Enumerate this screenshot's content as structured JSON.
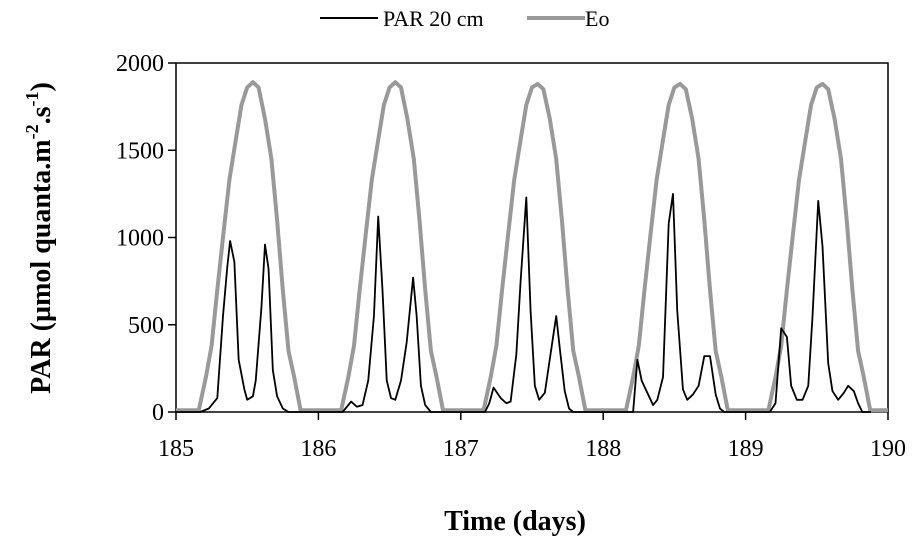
{
  "chart_data": {
    "type": "line",
    "title": "",
    "xlabel": "Time (days)",
    "ylabel_main": "PAR (µmol quanta.m",
    "ylabel_sup1": "-2",
    "ylabel_mid": ".s",
    "ylabel_sup2": "-1",
    "ylabel_end": ")",
    "xlim": [
      185,
      190
    ],
    "ylim": [
      0,
      2000
    ],
    "xticks": [
      "185",
      "186",
      "187",
      "188",
      "189",
      "190"
    ],
    "yticks": [
      "0",
      "500",
      "1000",
      "1500",
      "2000"
    ],
    "grid": false,
    "legend_position": "top-center",
    "series": [
      {
        "name": "PAR 20 cm",
        "color": "#000000",
        "points": [
          [
            185.0,
            0
          ],
          [
            185.17,
            0
          ],
          [
            185.23,
            20
          ],
          [
            185.29,
            80
          ],
          [
            185.33,
            550
          ],
          [
            185.36,
            830
          ],
          [
            185.38,
            980
          ],
          [
            185.41,
            860
          ],
          [
            185.44,
            300
          ],
          [
            185.48,
            130
          ],
          [
            185.5,
            70
          ],
          [
            185.54,
            90
          ],
          [
            185.56,
            180
          ],
          [
            185.6,
            600
          ],
          [
            185.625,
            960
          ],
          [
            185.65,
            820
          ],
          [
            185.68,
            240
          ],
          [
            185.71,
            90
          ],
          [
            185.75,
            20
          ],
          [
            185.79,
            0
          ],
          [
            185.83,
            0
          ],
          [
            186.17,
            0
          ],
          [
            186.23,
            60
          ],
          [
            186.27,
            30
          ],
          [
            186.31,
            40
          ],
          [
            186.35,
            180
          ],
          [
            186.39,
            550
          ],
          [
            186.42,
            1120
          ],
          [
            186.45,
            700
          ],
          [
            186.48,
            180
          ],
          [
            186.51,
            80
          ],
          [
            186.54,
            70
          ],
          [
            186.58,
            180
          ],
          [
            186.62,
            400
          ],
          [
            186.665,
            770
          ],
          [
            186.69,
            550
          ],
          [
            186.72,
            150
          ],
          [
            186.75,
            40
          ],
          [
            186.79,
            0
          ],
          [
            186.83,
            0
          ],
          [
            187.17,
            0
          ],
          [
            187.2,
            50
          ],
          [
            187.23,
            140
          ],
          [
            187.28,
            80
          ],
          [
            187.32,
            50
          ],
          [
            187.35,
            60
          ],
          [
            187.39,
            330
          ],
          [
            187.42,
            750
          ],
          [
            187.46,
            1230
          ],
          [
            187.49,
            580
          ],
          [
            187.52,
            150
          ],
          [
            187.55,
            70
          ],
          [
            187.59,
            110
          ],
          [
            187.63,
            330
          ],
          [
            187.67,
            550
          ],
          [
            187.7,
            330
          ],
          [
            187.73,
            120
          ],
          [
            187.76,
            20
          ],
          [
            187.79,
            0
          ],
          [
            187.83,
            0
          ],
          [
            188.21,
            0
          ],
          [
            188.24,
            300
          ],
          [
            188.27,
            180
          ],
          [
            188.31,
            110
          ],
          [
            188.35,
            40
          ],
          [
            188.38,
            70
          ],
          [
            188.42,
            200
          ],
          [
            188.46,
            1080
          ],
          [
            188.49,
            1250
          ],
          [
            188.52,
            580
          ],
          [
            188.56,
            130
          ],
          [
            188.59,
            70
          ],
          [
            188.63,
            100
          ],
          [
            188.67,
            150
          ],
          [
            188.71,
            320
          ],
          [
            188.75,
            320
          ],
          [
            188.79,
            100
          ],
          [
            188.82,
            20
          ],
          [
            188.85,
            0
          ],
          [
            189.17,
            0
          ],
          [
            189.21,
            50
          ],
          [
            189.25,
            480
          ],
          [
            189.29,
            430
          ],
          [
            189.32,
            150
          ],
          [
            189.36,
            70
          ],
          [
            189.4,
            70
          ],
          [
            189.44,
            150
          ],
          [
            189.47,
            550
          ],
          [
            189.51,
            1210
          ],
          [
            189.54,
            950
          ],
          [
            189.58,
            280
          ],
          [
            189.61,
            120
          ],
          [
            189.65,
            70
          ],
          [
            189.69,
            110
          ],
          [
            189.72,
            150
          ],
          [
            189.76,
            120
          ],
          [
            189.79,
            50
          ],
          [
            189.82,
            0
          ],
          [
            189.88,
            0
          ]
        ]
      },
      {
        "name": "Eo",
        "color": "#999999",
        "points": [
          [
            185.0,
            10
          ],
          [
            185.16,
            10
          ],
          [
            185.21,
            200
          ],
          [
            185.25,
            380
          ],
          [
            185.29,
            700
          ],
          [
            185.33,
            1000
          ],
          [
            185.375,
            1330
          ],
          [
            185.42,
            1560
          ],
          [
            185.46,
            1760
          ],
          [
            185.5,
            1860
          ],
          [
            185.54,
            1890
          ],
          [
            185.58,
            1860
          ],
          [
            185.625,
            1680
          ],
          [
            185.67,
            1450
          ],
          [
            185.71,
            1100
          ],
          [
            185.75,
            700
          ],
          [
            185.79,
            350
          ],
          [
            185.83,
            200
          ],
          [
            185.875,
            10
          ],
          [
            186.16,
            10
          ],
          [
            186.21,
            200
          ],
          [
            186.25,
            380
          ],
          [
            186.29,
            700
          ],
          [
            186.33,
            1000
          ],
          [
            186.375,
            1330
          ],
          [
            186.42,
            1560
          ],
          [
            186.46,
            1760
          ],
          [
            186.5,
            1860
          ],
          [
            186.54,
            1890
          ],
          [
            186.58,
            1860
          ],
          [
            186.625,
            1680
          ],
          [
            186.67,
            1450
          ],
          [
            186.71,
            1100
          ],
          [
            186.75,
            700
          ],
          [
            186.79,
            350
          ],
          [
            186.83,
            200
          ],
          [
            186.875,
            10
          ],
          [
            187.16,
            10
          ],
          [
            187.21,
            200
          ],
          [
            187.25,
            380
          ],
          [
            187.29,
            700
          ],
          [
            187.33,
            1000
          ],
          [
            187.375,
            1330
          ],
          [
            187.42,
            1560
          ],
          [
            187.46,
            1760
          ],
          [
            187.5,
            1860
          ],
          [
            187.54,
            1880
          ],
          [
            187.58,
            1850
          ],
          [
            187.625,
            1680
          ],
          [
            187.67,
            1450
          ],
          [
            187.71,
            1100
          ],
          [
            187.75,
            700
          ],
          [
            187.79,
            350
          ],
          [
            187.83,
            200
          ],
          [
            187.875,
            10
          ],
          [
            188.16,
            10
          ],
          [
            188.21,
            200
          ],
          [
            188.25,
            380
          ],
          [
            188.29,
            700
          ],
          [
            188.33,
            1000
          ],
          [
            188.375,
            1330
          ],
          [
            188.42,
            1560
          ],
          [
            188.46,
            1760
          ],
          [
            188.5,
            1860
          ],
          [
            188.54,
            1880
          ],
          [
            188.58,
            1850
          ],
          [
            188.625,
            1680
          ],
          [
            188.67,
            1450
          ],
          [
            188.71,
            1100
          ],
          [
            188.75,
            700
          ],
          [
            188.79,
            350
          ],
          [
            188.83,
            200
          ],
          [
            188.875,
            10
          ],
          [
            189.16,
            10
          ],
          [
            189.21,
            200
          ],
          [
            189.25,
            380
          ],
          [
            189.29,
            700
          ],
          [
            189.33,
            1000
          ],
          [
            189.375,
            1330
          ],
          [
            189.42,
            1560
          ],
          [
            189.46,
            1760
          ],
          [
            189.5,
            1860
          ],
          [
            189.54,
            1880
          ],
          [
            189.58,
            1850
          ],
          [
            189.625,
            1680
          ],
          [
            189.67,
            1450
          ],
          [
            189.71,
            1100
          ],
          [
            189.75,
            700
          ],
          [
            189.79,
            350
          ],
          [
            189.83,
            200
          ],
          [
            189.875,
            10
          ],
          [
            190.0,
            10
          ]
        ]
      }
    ]
  }
}
